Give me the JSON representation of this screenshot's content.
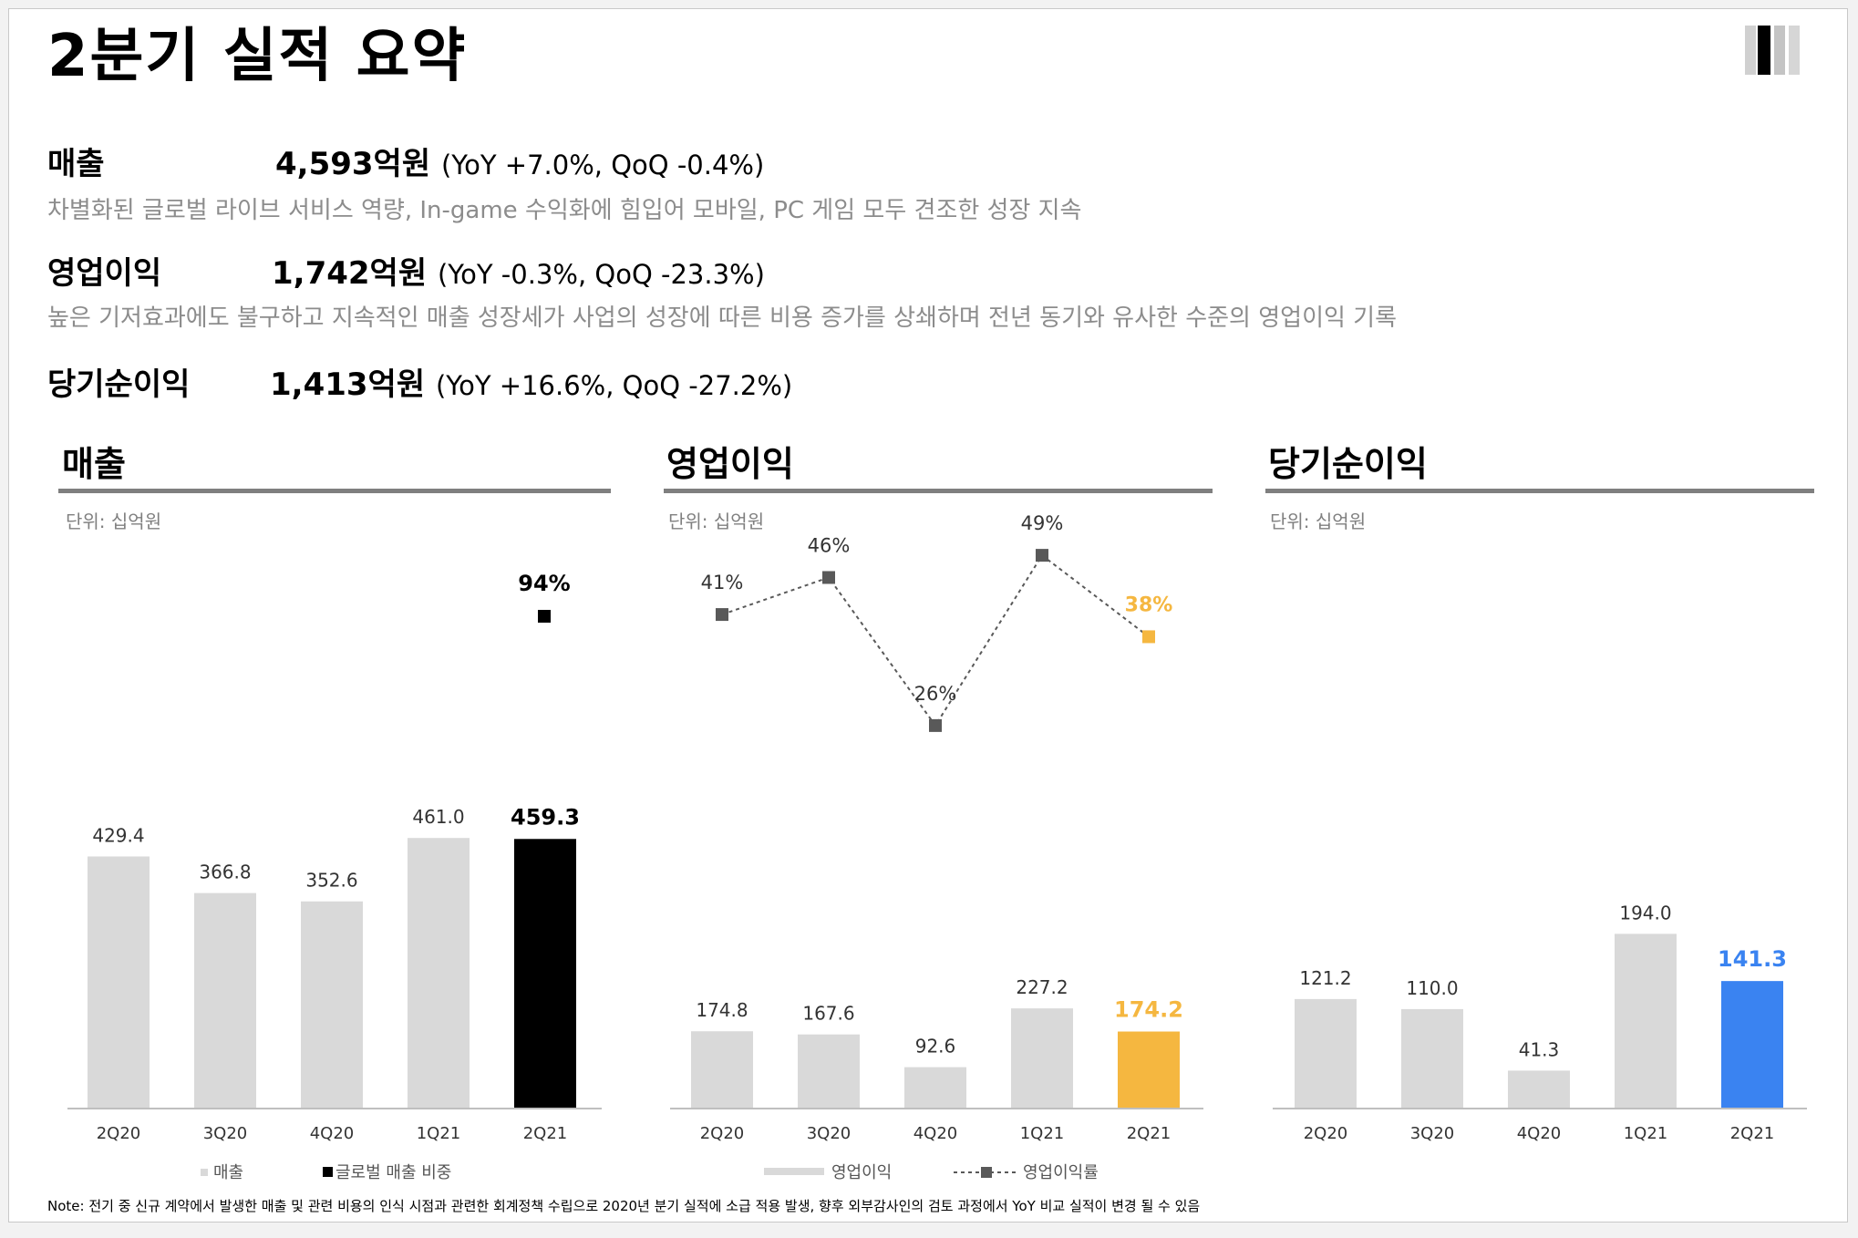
{
  "title": "2분기 실적 요약",
  "summary": [
    {
      "label": "매출",
      "value": "4,593억원",
      "change": "(YoY +7.0%, QoQ -0.4%)",
      "desc": "차별화된 글로벌 라이브 서비스 역량, In-game 수익화에 힘입어 모바일, PC 게임 모두 견조한 성장 지속"
    },
    {
      "label": "영업이익",
      "value": "1,742억원",
      "change": "(YoY -0.3%, QoQ -23.3%)",
      "desc": "높은 기저효과에도 불구하고 지속적인 매출 성장세가 사업의 성장에 따른 비용 증가를 상쇄하며 전년 동기와 유사한 수준의 영업이익 기록"
    },
    {
      "label": "당기순이익",
      "value": "1,413억원",
      "change": "(YoY +16.6%, QoQ -27.2%)",
      "desc": ""
    }
  ],
  "note": "Note: 전기 중 신규 계약에서 발생한 매출 및 관련 비용의 인식 시점과 관련한 회계정책 수립으로 2020년 분기 실적에 소급 적용 발생, 향후 외부감사인의 검토 과정에서 YoY 비교 실적이 변경 될 수 있음",
  "colors": {
    "bar": "#d9d9d9",
    "revenue_highlight": "#000000",
    "op_highlight": "#f5b740",
    "net_highlight": "#3a83f1",
    "line": "#595959",
    "rule": "#7f7f7f"
  },
  "chart_data": [
    {
      "type": "bar",
      "title": "매출",
      "unit": "단위: 십억원",
      "categories": [
        "2Q20",
        "3Q20",
        "4Q20",
        "1Q21",
        "2Q21"
      ],
      "series": [
        {
          "name": "매출",
          "values": [
            429.4,
            366.8,
            352.6,
            461.0,
            459.3
          ],
          "labels": [
            "429.4",
            "366.8",
            "352.6",
            "461.0",
            "459.3"
          ]
        },
        {
          "name": "글로벌 매출 비중",
          "points": [
            {
              "category": "2Q21",
              "value": 94,
              "label": "94%"
            }
          ]
        }
      ],
      "ylim": [
        0,
        600
      ],
      "legend": [
        "매출",
        "글로벌 매출 비중"
      ]
    },
    {
      "type": "bar",
      "title": "영업이익",
      "unit": "단위: 십억원",
      "categories": [
        "2Q20",
        "3Q20",
        "4Q20",
        "1Q21",
        "2Q21"
      ],
      "series": [
        {
          "name": "영업이익",
          "values": [
            174.8,
            167.6,
            92.6,
            227.2,
            174.2
          ],
          "labels": [
            "174.8",
            "167.6",
            "92.6",
            "227.2",
            "174.2"
          ]
        },
        {
          "name": "영업이익률",
          "type": "line",
          "values": [
            41,
            46,
            26,
            49,
            38
          ],
          "labels": [
            "41%",
            "46%",
            "26%",
            "49%",
            "38%"
          ]
        }
      ],
      "ylim": [
        0,
        480
      ],
      "legend": [
        "영업이익",
        "영업이익률"
      ]
    },
    {
      "type": "bar",
      "title": "당기순이익",
      "unit": "단위: 십억원",
      "categories": [
        "2Q20",
        "3Q20",
        "4Q20",
        "1Q21",
        "2Q21"
      ],
      "series": [
        {
          "name": "당기순이익",
          "values": [
            121.2,
            110.0,
            41.3,
            194.0,
            141.3
          ],
          "labels": [
            "121.2",
            "110.0",
            "41.3",
            "194.0",
            "141.3"
          ]
        }
      ],
      "ylim": [
        0,
        290
      ]
    }
  ]
}
